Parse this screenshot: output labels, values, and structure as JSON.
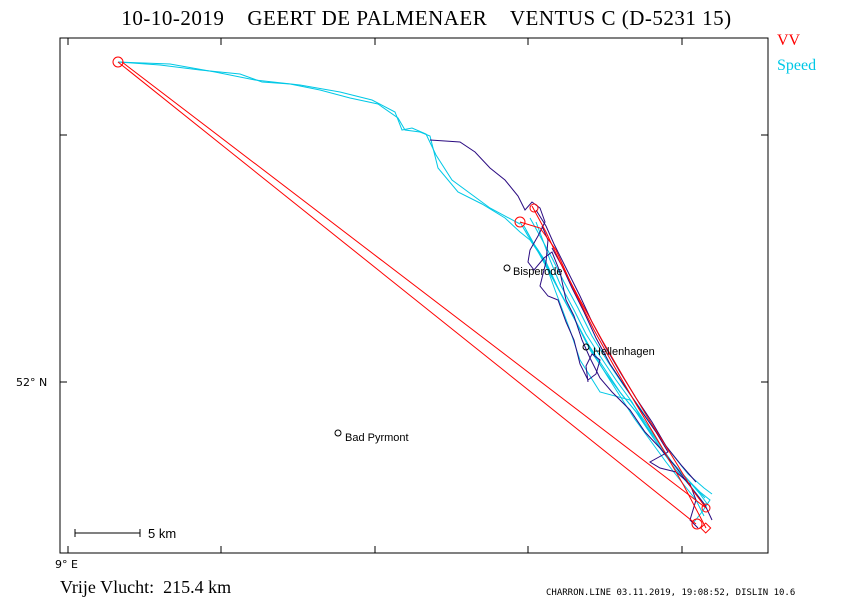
{
  "title": "10-10-2019    GEERT DE PALMENAER    VENTUS C (D-5231 15)",
  "legend": {
    "vv": "VV",
    "speed": "Speed"
  },
  "axes": {
    "lat_label": "52° N",
    "lon_label": "9° E"
  },
  "scale_bar": {
    "label": "5  km"
  },
  "places": [
    {
      "name": "Bisperode"
    },
    {
      "name": "Hellenhagen"
    },
    {
      "name": "Bad Pyrmont"
    }
  ],
  "footer": {
    "distance": "Vrije Vlucht:  215.4 km",
    "info": "CHARRON.LINE 03.11.2019, 19:08:52, DISLIN 10.6"
  },
  "colors": {
    "vv": "#ff0000",
    "speed": "#00c8e6",
    "track": "#2a0a80",
    "frame": "#000000"
  }
}
